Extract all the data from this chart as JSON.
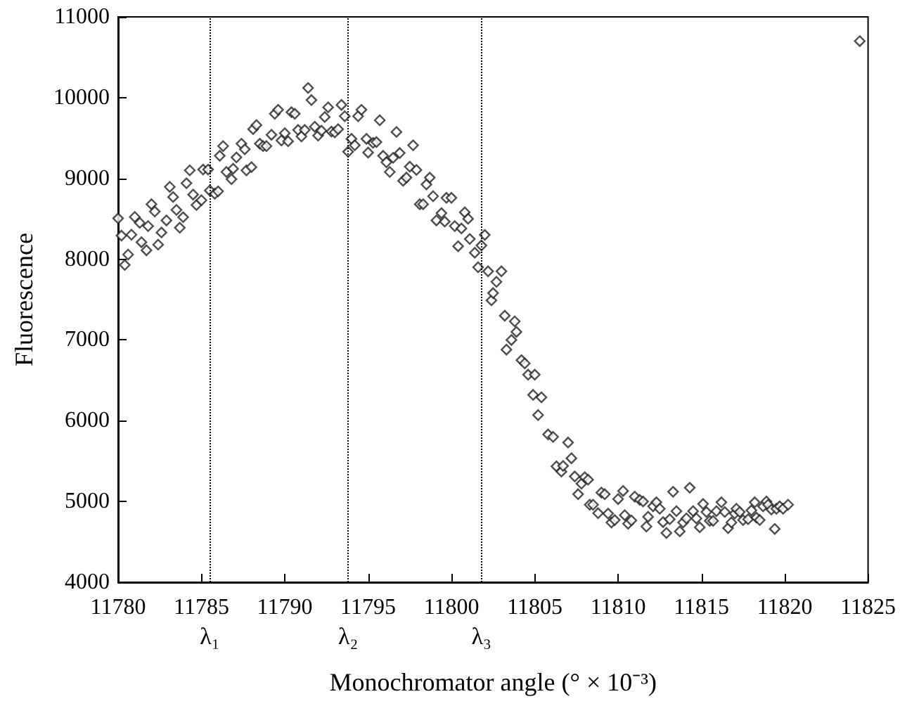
{
  "chart_data": {
    "type": "scatter",
    "xlabel": "Monochromator angle (° × 10⁻³)",
    "ylabel": "Fluorescence",
    "xlim": [
      11780,
      11825
    ],
    "xticks": [
      11780,
      11785,
      11790,
      11795,
      11800,
      11805,
      11810,
      11815,
      11820,
      11825
    ],
    "ylim": [
      4000,
      11000
    ],
    "yticks": [
      4000,
      5000,
      6000,
      7000,
      8000,
      9000,
      10000,
      11000
    ],
    "grid": false,
    "marker": "diamond",
    "ref_lines": [
      {
        "axis": "x",
        "value": 11785.5,
        "label": "λ₁",
        "line_style": "dotted"
      },
      {
        "axis": "x",
        "value": 11793.8,
        "label": "λ₂",
        "line_style": "dotted"
      },
      {
        "axis": "x",
        "value": 11801.8,
        "label": "λ₃",
        "line_style": "dotted"
      }
    ],
    "series": [
      {
        "color": "#222222",
        "x": [
          11780.0,
          11780.2,
          11780.4,
          11780.6,
          11780.8,
          11781.0,
          11781.3,
          11781.4,
          11781.7,
          11781.8,
          11782.0,
          11782.2,
          11782.4,
          11782.6,
          11782.9,
          11783.1,
          11783.3,
          11783.5,
          11783.7,
          11783.9,
          11784.1,
          11784.3,
          11784.5,
          11784.7,
          11785.0,
          11785.1,
          11785.4,
          11785.5,
          11785.8,
          11786.0,
          11786.1,
          11786.3,
          11786.5,
          11786.8,
          11786.9,
          11787.1,
          11787.4,
          11787.6,
          11787.7,
          11788.0,
          11788.1,
          11788.3,
          11788.5,
          11788.7,
          11788.9,
          11789.2,
          11789.4,
          11789.6,
          11789.8,
          11790.0,
          11790.2,
          11790.4,
          11790.6,
          11790.8,
          11791.0,
          11791.2,
          11791.4,
          11791.6,
          11791.8,
          11792.0,
          11792.2,
          11792.4,
          11792.6,
          11792.8,
          11793.0,
          11793.2,
          11793.4,
          11793.6,
          11793.8,
          11794.0,
          11794.2,
          11794.4,
          11794.6,
          11794.9,
          11795.0,
          11795.3,
          11795.5,
          11795.7,
          11795.9,
          11796.1,
          11796.3,
          11796.5,
          11796.7,
          11796.9,
          11797.1,
          11797.3,
          11797.5,
          11797.7,
          11797.9,
          11798.1,
          11798.3,
          11798.5,
          11798.7,
          11798.9,
          11799.1,
          11799.4,
          11799.6,
          11799.7,
          11800.0,
          11800.2,
          11800.4,
          11800.6,
          11800.8,
          11801.0,
          11801.1,
          11801.4,
          11801.6,
          11801.8,
          11802.0,
          11802.2,
          11802.4,
          11802.5,
          11802.7,
          11803.0,
          11803.2,
          11803.3,
          11803.6,
          11803.8,
          11803.9,
          11804.2,
          11804.4,
          11804.6,
          11804.9,
          11805.0,
          11805.2,
          11805.4,
          11805.8,
          11806.1,
          11806.3,
          11806.6,
          11806.7,
          11807.0,
          11807.2,
          11807.4,
          11807.6,
          11807.8,
          11808.0,
          11808.2,
          11808.3,
          11808.5,
          11808.8,
          11809.0,
          11809.2,
          11809.4,
          11809.6,
          11809.8,
          11810.0,
          11810.3,
          11810.4,
          11810.6,
          11810.8,
          11811.0,
          11811.3,
          11811.5,
          11811.7,
          11811.8,
          11812.1,
          11812.3,
          11812.5,
          11812.7,
          11812.9,
          11813.1,
          11813.3,
          11813.5,
          11813.7,
          11813.9,
          11814.1,
          11814.3,
          11814.5,
          11814.7,
          11814.9,
          11815.1,
          11815.3,
          11815.5,
          11815.7,
          11815.9,
          11816.2,
          11816.4,
          11816.6,
          11816.8,
          11817.0,
          11817.1,
          11817.3,
          11817.5,
          11817.8,
          11818.0,
          11818.2,
          11818.3,
          11818.5,
          11818.7,
          11818.9,
          11819.0,
          11819.2,
          11819.4,
          11819.5,
          11819.7,
          11819.9,
          11820.2,
          11824.5
        ],
        "values": [
          8505,
          8292,
          7928,
          8057,
          8303,
          8523,
          8450,
          8210,
          8110,
          8410,
          8680,
          8590,
          8180,
          8330,
          8480,
          8895,
          8770,
          8610,
          8390,
          8520,
          8940,
          9100,
          8800,
          8670,
          8730,
          9110,
          9110,
          8850,
          8810,
          8840,
          9280,
          9400,
          9080,
          8990,
          9120,
          9260,
          9430,
          9360,
          9100,
          9140,
          9610,
          9660,
          9430,
          9400,
          9400,
          9540,
          9800,
          9850,
          9470,
          9560,
          9460,
          9820,
          9800,
          9600,
          9520,
          9600,
          10120,
          9970,
          9640,
          9530,
          9590,
          9760,
          9880,
          9580,
          9570,
          9610,
          9910,
          9770,
          9330,
          9490,
          9410,
          9770,
          9850,
          9490,
          9320,
          9440,
          9450,
          9720,
          9280,
          9200,
          9080,
          9255,
          9575,
          9315,
          8970,
          9010,
          9145,
          9410,
          9105,
          8680,
          8680,
          8925,
          9010,
          8780,
          8480,
          8570,
          8465,
          8760,
          8760,
          8410,
          8160,
          8380,
          8580,
          8500,
          8250,
          8080,
          7900,
          8170,
          8300,
          7850,
          7490,
          7580,
          7720,
          7850,
          7300,
          6880,
          7000,
          7230,
          7100,
          6750,
          6710,
          6570,
          6320,
          6570,
          6070,
          6290,
          5830,
          5800,
          5435,
          5370,
          5440,
          5730,
          5535,
          5310,
          5090,
          5220,
          5300,
          5270,
          4960,
          4960,
          4855,
          5110,
          5090,
          4850,
          4740,
          4770,
          5030,
          5130,
          4830,
          4725,
          4765,
          5060,
          5020,
          5000,
          4690,
          4810,
          4940,
          4990,
          4910,
          4745,
          4610,
          4780,
          5120,
          4880,
          4630,
          4740,
          4790,
          5170,
          4880,
          4790,
          4680,
          4970,
          4870,
          4760,
          4760,
          4880,
          4990,
          4870,
          4670,
          4740,
          4850,
          4910,
          4870,
          4770,
          4780,
          4890,
          4990,
          4800,
          4770,
          4940,
          5000,
          4960,
          4900,
          4660,
          4910,
          4940,
          4910,
          4960,
          10700
        ]
      }
    ]
  }
}
